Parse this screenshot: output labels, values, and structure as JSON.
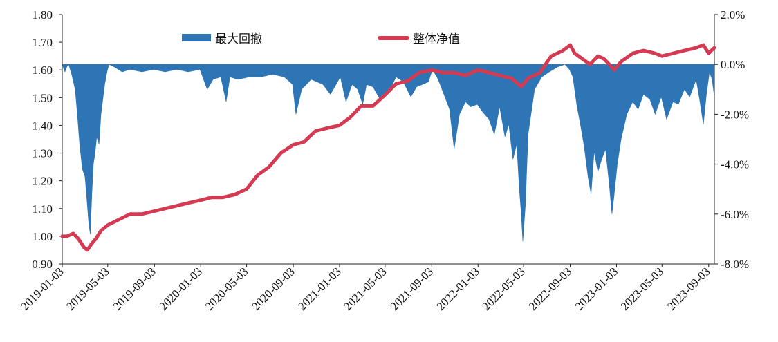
{
  "colors": {
    "drawdown": "#2E75B6",
    "nav": "#D43A52",
    "axis": "#222222",
    "background": "#FFFFFF"
  },
  "legend": {
    "drawdown_label": "最大回撤",
    "nav_label": "整体净值"
  },
  "chart_data": {
    "type": "line",
    "x_ticks": [
      "2019-01-03",
      "2019-05-03",
      "2019-09-03",
      "2020-01-03",
      "2020-05-03",
      "2020-09-03",
      "2021-01-03",
      "2021-05-03",
      "2021-09-03",
      "2022-01-03",
      "2022-05-03",
      "2022-09-03",
      "2023-01-03",
      "2023-05-03",
      "2023-09-03"
    ],
    "y_left_ticks": [
      "0.90",
      "1.00",
      "1.10",
      "1.20",
      "1.30",
      "1.40",
      "1.50",
      "1.60",
      "1.70",
      "1.80"
    ],
    "y_right_ticks": [
      "2.0%",
      "0.0%",
      "-2.0%",
      "-4.0%",
      "-6.0%",
      "-8.0%"
    ],
    "ylim_left": [
      0.9,
      1.8
    ],
    "ylim_right": [
      -8.0,
      2.0
    ],
    "xlim": [
      "2019-01-03",
      "2023-09-18"
    ],
    "legend_position": "top-center",
    "grid": false,
    "series": [
      {
        "name": "最大回撤",
        "type": "area",
        "axis": "right",
        "x": [
          "2019-01-03",
          "2019-01-10",
          "2019-01-15",
          "2019-01-20",
          "2019-01-28",
          "2019-02-06",
          "2019-02-12",
          "2019-02-18",
          "2019-02-25",
          "2019-03-04",
          "2019-03-10",
          "2019-03-14",
          "2019-03-18",
          "2019-03-22",
          "2019-03-26",
          "2019-03-30",
          "2019-04-04",
          "2019-04-10",
          "2019-04-15",
          "2019-04-20",
          "2019-04-25",
          "2019-05-01",
          "2019-05-06",
          "2019-05-20",
          "2019-06-10",
          "2019-07-01",
          "2019-08-01",
          "2019-09-01",
          "2019-10-01",
          "2019-11-01",
          "2019-12-01",
          "2020-01-01",
          "2020-01-20",
          "2020-02-05",
          "2020-02-25",
          "2020-03-10",
          "2020-03-20",
          "2020-04-10",
          "2020-05-10",
          "2020-06-10",
          "2020-07-10",
          "2020-08-10",
          "2020-09-01",
          "2020-09-10",
          "2020-09-25",
          "2020-10-20",
          "2020-11-20",
          "2020-12-10",
          "2021-01-05",
          "2021-01-20",
          "2021-02-05",
          "2021-02-20",
          "2021-03-05",
          "2021-03-15",
          "2021-04-01",
          "2021-04-20",
          "2021-05-10",
          "2021-06-01",
          "2021-06-20",
          "2021-07-10",
          "2021-07-25",
          "2021-08-10",
          "2021-08-25",
          "2021-09-05",
          "2021-09-20",
          "2021-10-05",
          "2021-10-20",
          "2021-11-01",
          "2021-11-15",
          "2021-12-01",
          "2021-12-15",
          "2022-01-01",
          "2022-01-15",
          "2022-02-01",
          "2022-02-15",
          "2022-03-01",
          "2022-03-15",
          "2022-03-25",
          "2022-04-05",
          "2022-04-15",
          "2022-04-22",
          "2022-04-27",
          "2022-05-01",
          "2022-05-08",
          "2022-05-15",
          "2022-06-01",
          "2022-06-20",
          "2022-07-10",
          "2022-08-01",
          "2022-08-20",
          "2022-09-01",
          "2022-09-10",
          "2022-09-20",
          "2022-10-01",
          "2022-10-10",
          "2022-10-20",
          "2022-10-28",
          "2022-11-05",
          "2022-11-15",
          "2022-11-25",
          "2022-12-05",
          "2022-12-15",
          "2022-12-22",
          "2022-12-28",
          "2023-01-05",
          "2023-01-15",
          "2023-01-30",
          "2023-02-15",
          "2023-03-01",
          "2023-03-15",
          "2023-04-01",
          "2023-04-15",
          "2023-05-01",
          "2023-05-15",
          "2023-06-01",
          "2023-06-15",
          "2023-07-01",
          "2023-07-15",
          "2023-08-01",
          "2023-08-10",
          "2023-08-20",
          "2023-08-28",
          "2023-09-05",
          "2023-09-12",
          "2023-09-18"
        ],
        "values": [
          0.0,
          -0.3,
          -0.1,
          0.0,
          -0.4,
          -1.0,
          -2.0,
          -3.2,
          -4.2,
          -4.5,
          -5.6,
          -6.4,
          -6.8,
          -5.2,
          -4.0,
          -3.6,
          -2.9,
          -3.2,
          -2.0,
          -1.4,
          -0.8,
          -0.3,
          0.0,
          -0.1,
          -0.3,
          -0.2,
          -0.3,
          -0.2,
          -0.3,
          -0.2,
          -0.3,
          -0.2,
          -1.0,
          -0.6,
          -0.5,
          -1.5,
          -0.5,
          -0.6,
          -0.5,
          -0.5,
          -0.4,
          -0.5,
          -0.8,
          -2.0,
          -1.0,
          -0.6,
          -0.8,
          -1.2,
          -0.5,
          -1.5,
          -0.8,
          -1.0,
          -1.6,
          -0.8,
          -0.9,
          -1.4,
          -1.2,
          -0.5,
          -0.7,
          -1.3,
          -0.9,
          -0.8,
          -0.7,
          -0.2,
          -0.6,
          -1.2,
          -1.8,
          -3.4,
          -2.0,
          -1.5,
          -1.7,
          -1.6,
          -1.9,
          -2.2,
          -2.8,
          -1.7,
          -2.9,
          -2.4,
          -3.8,
          -3.2,
          -5.0,
          -6.0,
          -7.1,
          -5.6,
          -2.8,
          -1.0,
          -0.5,
          -0.3,
          -0.1,
          0.0,
          -0.2,
          -0.5,
          -1.6,
          -2.5,
          -3.3,
          -4.5,
          -5.2,
          -3.5,
          -4.3,
          -3.8,
          -3.4,
          -4.8,
          -6.0,
          -5.2,
          -4.0,
          -3.0,
          -2.0,
          -1.5,
          -1.8,
          -1.2,
          -1.4,
          -2.0,
          -1.3,
          -2.2,
          -1.5,
          -1.6,
          -1.0,
          -1.3,
          -0.6,
          -1.4,
          -2.4,
          -1.2,
          -0.3,
          -0.6,
          -1.3
        ]
      },
      {
        "name": "整体净值",
        "type": "line",
        "axis": "left",
        "x": [
          "2019-01-03",
          "2019-01-15",
          "2019-02-01",
          "2019-02-15",
          "2019-03-01",
          "2019-03-10",
          "2019-03-20",
          "2019-04-01",
          "2019-04-15",
          "2019-05-03",
          "2019-06-01",
          "2019-07-01",
          "2019-08-01",
          "2019-09-01",
          "2019-10-01",
          "2019-11-01",
          "2019-12-01",
          "2020-01-03",
          "2020-02-01",
          "2020-03-01",
          "2020-04-01",
          "2020-05-03",
          "2020-06-01",
          "2020-07-01",
          "2020-08-01",
          "2020-09-03",
          "2020-10-01",
          "2020-11-01",
          "2020-12-01",
          "2021-01-03",
          "2021-02-01",
          "2021-03-01",
          "2021-04-01",
          "2021-05-03",
          "2021-06-01",
          "2021-07-01",
          "2021-08-01",
          "2021-09-03",
          "2021-10-01",
          "2021-11-01",
          "2021-12-01",
          "2022-01-03",
          "2022-02-01",
          "2022-03-01",
          "2022-04-01",
          "2022-04-27",
          "2022-05-15",
          "2022-06-15",
          "2022-07-15",
          "2022-08-15",
          "2022-09-03",
          "2022-09-15",
          "2022-10-05",
          "2022-10-25",
          "2022-11-15",
          "2022-12-01",
          "2022-12-15",
          "2022-12-28",
          "2023-01-15",
          "2023-02-15",
          "2023-03-15",
          "2023-04-15",
          "2023-05-03",
          "2023-06-01",
          "2023-07-01",
          "2023-08-01",
          "2023-08-20",
          "2023-09-03",
          "2023-09-10",
          "2023-09-18"
        ],
        "values": [
          1.0,
          1.0,
          1.01,
          0.99,
          0.96,
          0.95,
          0.97,
          0.99,
          1.02,
          1.04,
          1.06,
          1.08,
          1.08,
          1.09,
          1.1,
          1.11,
          1.12,
          1.13,
          1.14,
          1.14,
          1.15,
          1.17,
          1.22,
          1.25,
          1.3,
          1.33,
          1.34,
          1.38,
          1.39,
          1.4,
          1.43,
          1.47,
          1.47,
          1.51,
          1.55,
          1.56,
          1.59,
          1.6,
          1.59,
          1.59,
          1.58,
          1.6,
          1.59,
          1.58,
          1.57,
          1.54,
          1.57,
          1.59,
          1.65,
          1.67,
          1.69,
          1.66,
          1.64,
          1.62,
          1.65,
          1.64,
          1.62,
          1.6,
          1.63,
          1.66,
          1.67,
          1.66,
          1.65,
          1.66,
          1.67,
          1.68,
          1.69,
          1.66,
          1.67,
          1.68
        ]
      }
    ]
  }
}
